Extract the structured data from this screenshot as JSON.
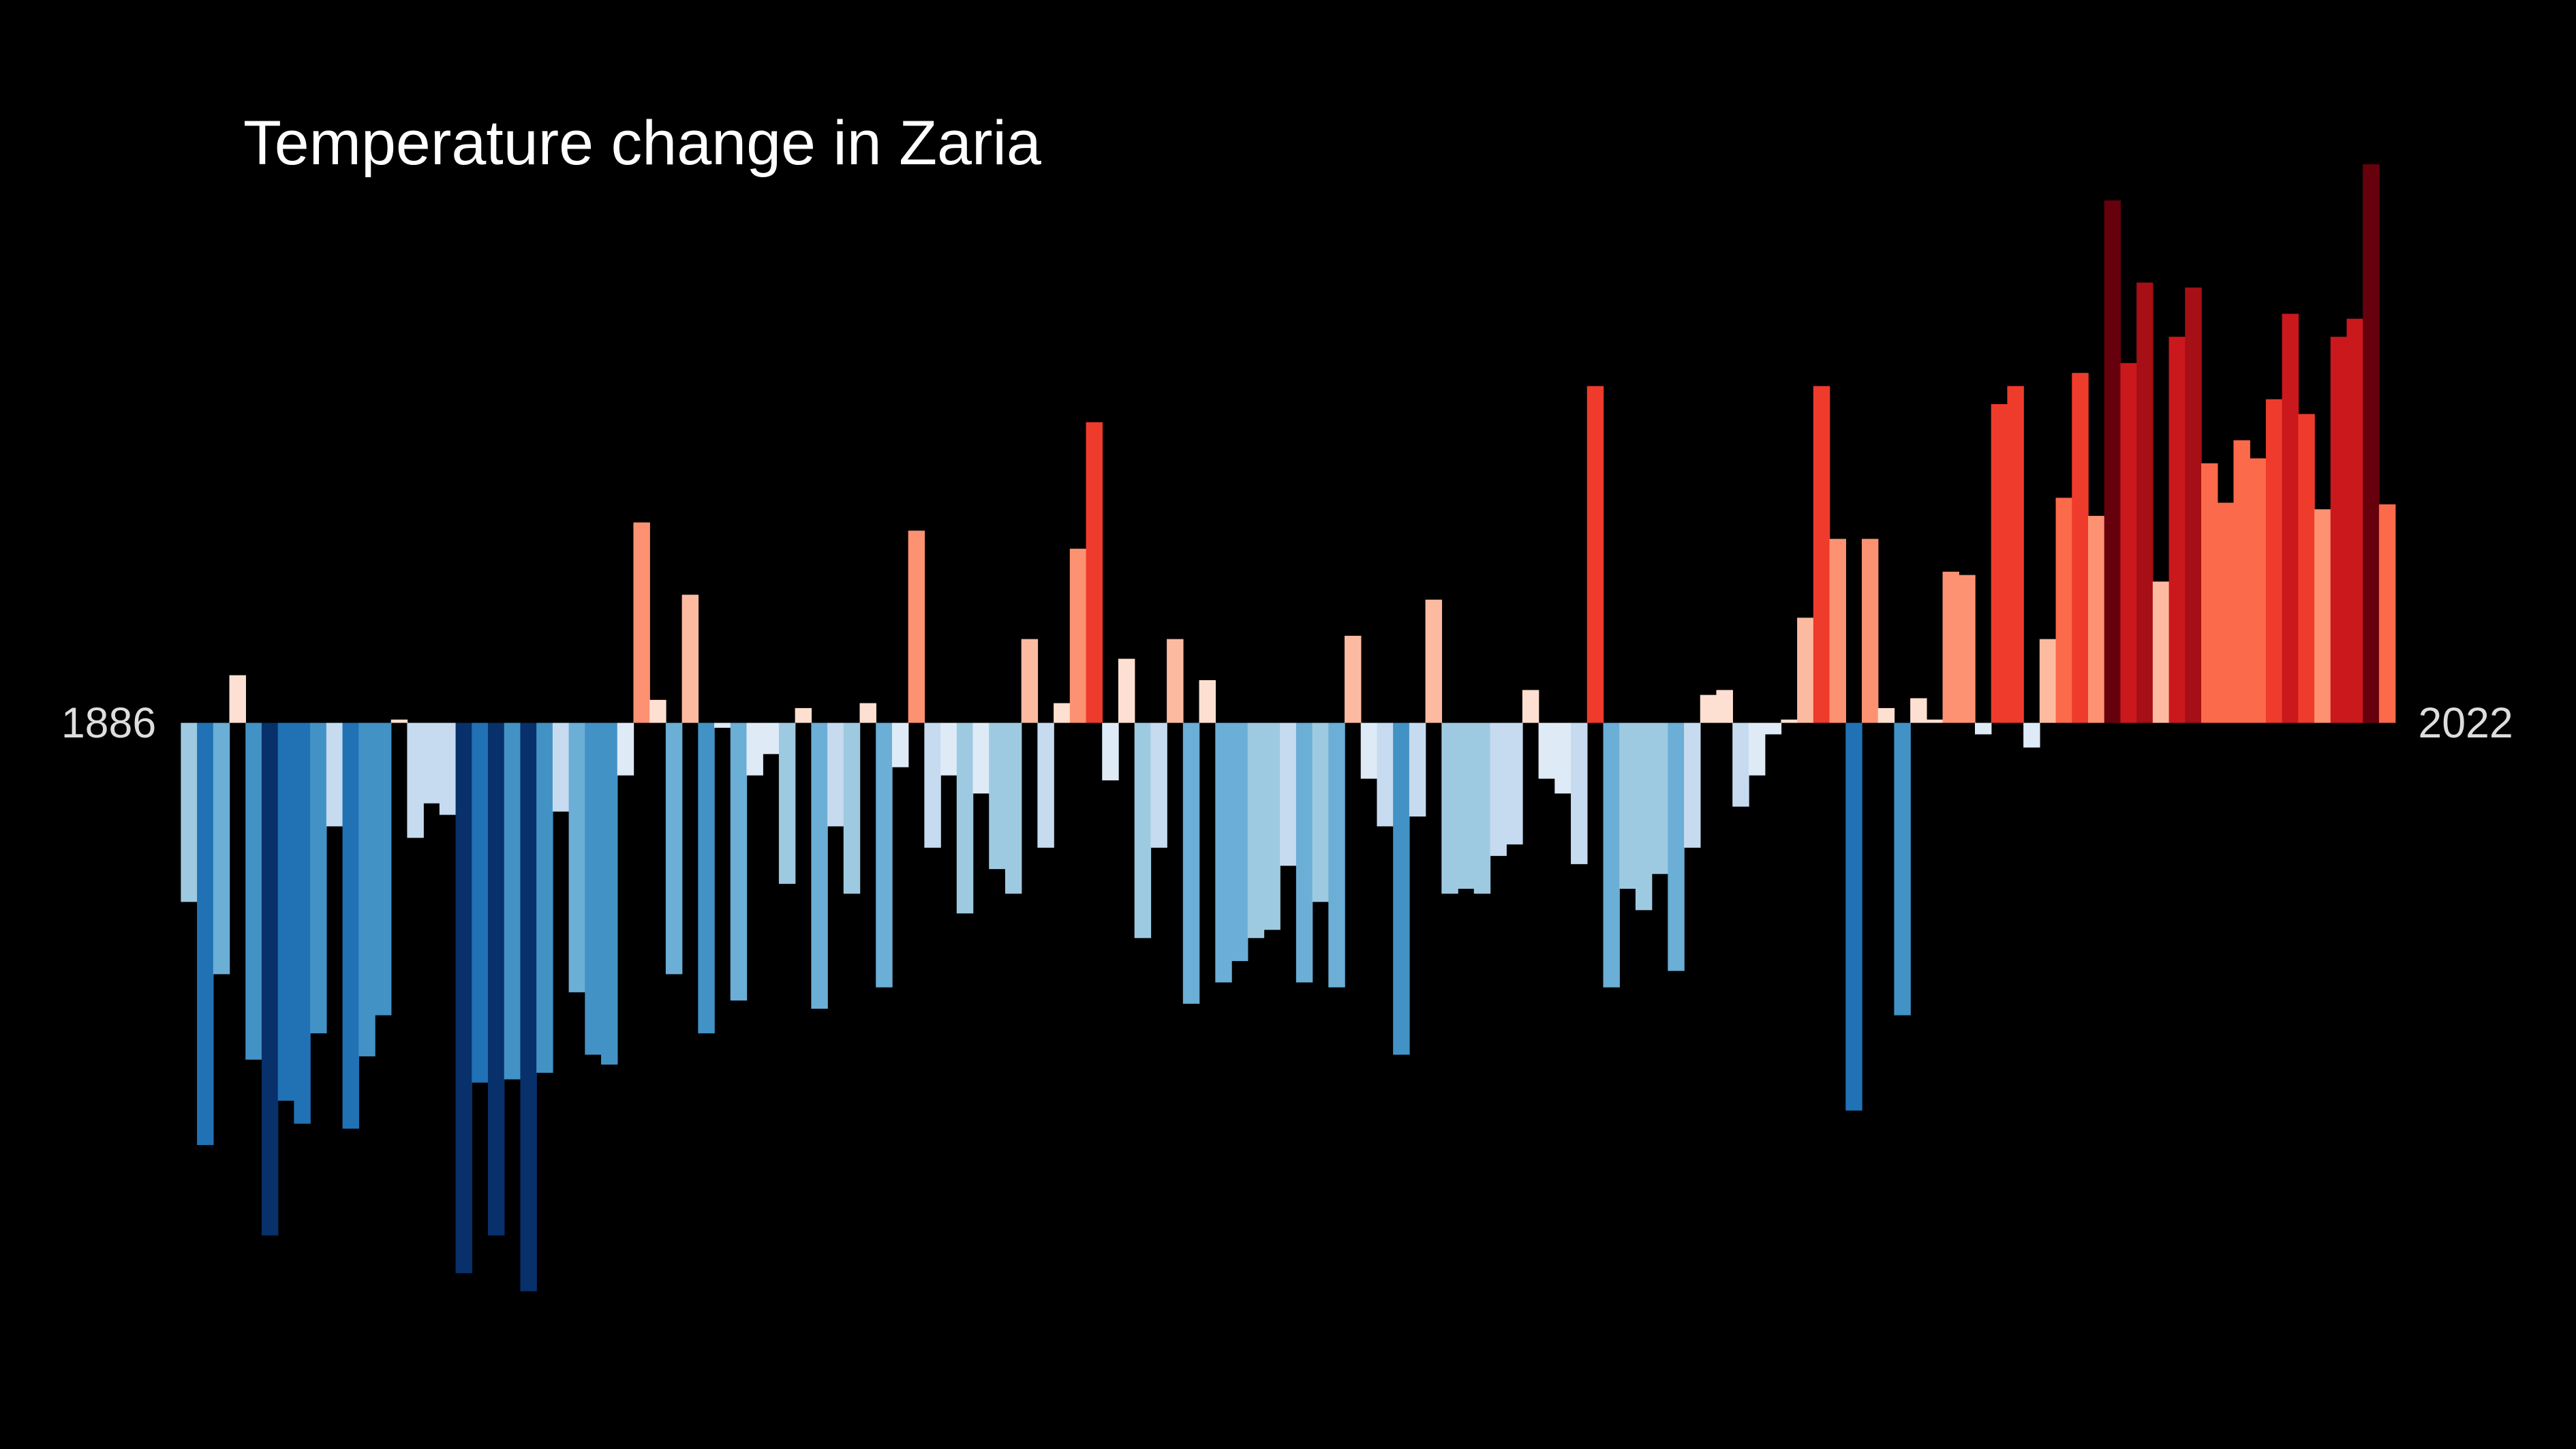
{
  "chart_data": {
    "type": "bar",
    "title": "Temperature change in Zaria",
    "categories": [
      "1886",
      null,
      null,
      null,
      null,
      null,
      null,
      null,
      null,
      null,
      null,
      null,
      null,
      null,
      null,
      null,
      null,
      null,
      null,
      null,
      null,
      null,
      null,
      null,
      null,
      null,
      null,
      null,
      null,
      null,
      null,
      null,
      null,
      null,
      null,
      null,
      null,
      null,
      null,
      null,
      null,
      null,
      null,
      null,
      null,
      null,
      null,
      null,
      null,
      null,
      null,
      null,
      null,
      null,
      null,
      null,
      null,
      null,
      null,
      null,
      null,
      null,
      null,
      null,
      null,
      null,
      null,
      null,
      null,
      null,
      null,
      null,
      null,
      null,
      null,
      null,
      null,
      null,
      null,
      null,
      null,
      null,
      null,
      null,
      null,
      null,
      null,
      null,
      null,
      null,
      null,
      null,
      null,
      null,
      null,
      null,
      null,
      null,
      null,
      null,
      null,
      null,
      null,
      null,
      null,
      null,
      null,
      null,
      null,
      null,
      null,
      null,
      null,
      null,
      null,
      null,
      null,
      null,
      null,
      null,
      null,
      null,
      null,
      null,
      null,
      null,
      null,
      null,
      null,
      null,
      null,
      null,
      null,
      null,
      null,
      null,
      "2022"
    ],
    "values": [
      -1.09,
      -2.57,
      -1.53,
      0.29,
      -2.05,
      -3.12,
      -2.3,
      -2.44,
      -1.89,
      -0.63,
      -2.47,
      -2.03,
      -1.78,
      0.02,
      -0.7,
      -0.49,
      -0.56,
      -3.35,
      -2.19,
      -3.12,
      -2.17,
      -3.46,
      -2.13,
      -0.54,
      -1.64,
      -2.02,
      -2.08,
      -0.32,
      1.22,
      0.14,
      -1.53,
      0.78,
      -1.89,
      -0.03,
      -1.69,
      -0.32,
      -0.19,
      -0.98,
      0.09,
      -1.74,
      -0.63,
      -1.04,
      0.12,
      -1.61,
      -0.27,
      1.17,
      -0.76,
      -0.32,
      -1.16,
      -0.43,
      -0.89,
      -1.04,
      0.51,
      -0.76,
      0.12,
      1.06,
      1.83,
      -0.35,
      0.39,
      -1.31,
      -0.76,
      0.51,
      -1.71,
      0.26,
      -1.58,
      -1.45,
      -1.31,
      -1.26,
      -0.87,
      -1.58,
      -1.09,
      -1.61,
      0.53,
      -0.34,
      -0.63,
      -2.02,
      -0.57,
      0.75,
      -1.04,
      -1.01,
      -1.04,
      -0.81,
      -0.74,
      0.2,
      -0.34,
      -0.43,
      -0.86,
      2.05,
      -1.61,
      -1.01,
      -1.14,
      -0.92,
      -1.51,
      -0.76,
      0.17,
      0.2,
      -0.51,
      -0.32,
      -0.07,
      0.02,
      0.64,
      2.05,
      1.12,
      -2.36,
      1.12,
      0.09,
      -1.78,
      0.15,
      0.02,
      0.92,
      0.9,
      -0.07,
      1.94,
      2.05,
      -0.15,
      0.51,
      1.37,
      2.13,
      1.26,
      3.18,
      2.19,
      2.68,
      0.86,
      2.35,
      2.65,
      1.58,
      1.34,
      1.72,
      1.61,
      1.97,
      2.49,
      1.88,
      1.3,
      2.35,
      2.46,
      3.4,
      1.33
    ],
    "ylim": [
      -3.6,
      3.5
    ],
    "colormap": [
      "#08306b",
      "#08519c",
      "#2171b5",
      "#4292c6",
      "#6baed6",
      "#9ecae1",
      "#c6dbef",
      "#deebf7",
      "#fee0d2",
      "#fcbba1",
      "#fc9272",
      "#fb6a4a",
      "#ef3b2c",
      "#cb181d",
      "#a50f15",
      "#67000d"
    ],
    "color_range": [
      -3.5,
      3.5
    ],
    "grid": false
  }
}
